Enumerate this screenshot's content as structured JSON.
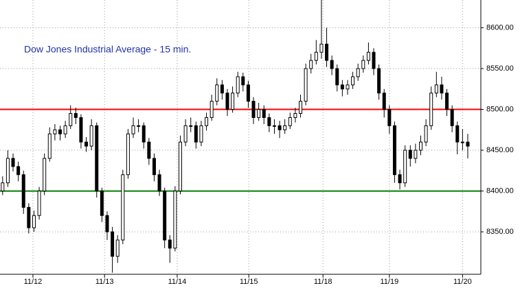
{
  "chart_data": {
    "type": "candlestick",
    "title": "Dow Jones Industrial Average - 15 min.",
    "open": [
      8400,
      8410,
      8440,
      8430,
      8420,
      8380,
      8355,
      8370,
      8400,
      8440,
      8470,
      8475,
      8470,
      8480,
      8495,
      8490,
      8460,
      8455,
      8480,
      8400,
      8370,
      8350,
      8320,
      8340,
      8420,
      8470,
      8480,
      8480,
      8460,
      8440,
      8420,
      8400,
      8340,
      8330,
      8400,
      8460,
      8480,
      8480,
      8460,
      8480,
      8490,
      8510,
      8530,
      8520,
      8500,
      8520,
      8540,
      8530,
      8510,
      8490,
      8500,
      8490,
      8480,
      8480,
      8475,
      8480,
      8490,
      8495,
      8510,
      8550,
      8560,
      8570,
      8580,
      8560,
      8550,
      8530,
      8525,
      8530,
      8540,
      8550,
      8560,
      8570,
      8550,
      8520,
      8500,
      8480,
      8420,
      8410,
      8450,
      8440,
      8450,
      8460,
      8480,
      8520,
      8530,
      8520,
      8500,
      8480,
      8460,
      8460
    ],
    "high": [
      8418,
      8450,
      8446,
      8436,
      8425,
      8385,
      8376,
      8405,
      8446,
      8478,
      8482,
      8480,
      8486,
      8505,
      8502,
      8494,
      8466,
      8488,
      8484,
      8404,
      8375,
      8356,
      8346,
      8426,
      8476,
      8490,
      8488,
      8484,
      8465,
      8446,
      8426,
      8404,
      8346,
      8406,
      8468,
      8488,
      8490,
      8485,
      8486,
      8496,
      8518,
      8538,
      8536,
      8525,
      8528,
      8546,
      8545,
      8535,
      8515,
      8508,
      8505,
      8495,
      8488,
      8486,
      8488,
      8496,
      8502,
      8518,
      8556,
      8568,
      8585,
      8634,
      8600,
      8566,
      8555,
      8536,
      8536,
      8546,
      8556,
      8566,
      8582,
      8575,
      8555,
      8525,
      8505,
      8485,
      8426,
      8456,
      8456,
      8458,
      8468,
      8488,
      8528,
      8546,
      8540,
      8525,
      8505,
      8485,
      8476,
      8470
    ],
    "low": [
      8395,
      8405,
      8424,
      8412,
      8372,
      8348,
      8350,
      8365,
      8395,
      8436,
      8462,
      8462,
      8465,
      8476,
      8482,
      8452,
      8448,
      8450,
      8392,
      8362,
      8340,
      8300,
      8312,
      8335,
      8415,
      8465,
      8472,
      8452,
      8432,
      8412,
      8394,
      8330,
      8312,
      8326,
      8396,
      8455,
      8472,
      8452,
      8455,
      8474,
      8486,
      8505,
      8512,
      8492,
      8496,
      8515,
      8522,
      8502,
      8482,
      8486,
      8482,
      8472,
      8470,
      8465,
      8470,
      8476,
      8484,
      8490,
      8505,
      8544,
      8555,
      8562,
      8552,
      8542,
      8522,
      8516,
      8518,
      8525,
      8535,
      8545,
      8555,
      8542,
      8512,
      8490,
      8470,
      8410,
      8402,
      8405,
      8430,
      8434,
      8444,
      8455,
      8475,
      8515,
      8512,
      8492,
      8472,
      8445,
      8450,
      8440
    ],
    "close": [
      8410,
      8440,
      8430,
      8420,
      8380,
      8355,
      8370,
      8400,
      8440,
      8470,
      8475,
      8470,
      8480,
      8495,
      8490,
      8460,
      8455,
      8480,
      8400,
      8370,
      8350,
      8320,
      8340,
      8420,
      8470,
      8480,
      8480,
      8460,
      8440,
      8420,
      8400,
      8340,
      8330,
      8400,
      8460,
      8480,
      8480,
      8460,
      8480,
      8490,
      8510,
      8530,
      8520,
      8500,
      8520,
      8540,
      8530,
      8510,
      8490,
      8500,
      8490,
      8480,
      8480,
      8475,
      8480,
      8490,
      8495,
      8510,
      8550,
      8560,
      8570,
      8580,
      8560,
      8550,
      8530,
      8525,
      8530,
      8540,
      8550,
      8560,
      8570,
      8550,
      8520,
      8500,
      8480,
      8420,
      8410,
      8450,
      8440,
      8450,
      8460,
      8480,
      8520,
      8530,
      8520,
      8500,
      8480,
      8460,
      8460,
      8455
    ],
    "xlim": [
      -0.5,
      91.5
    ],
    "xticks": [
      {
        "value": 5.8,
        "label": "11/12"
      },
      {
        "value": 19.5,
        "label": "11/13"
      },
      {
        "value": 33.4,
        "label": "11/14"
      },
      {
        "value": 47.1,
        "label": "11/15"
      },
      {
        "value": 61.3,
        "label": "11/18"
      },
      {
        "value": 74,
        "label": "11/19"
      },
      {
        "value": 88,
        "label": "11/20"
      }
    ],
    "ylim": [
      8298,
      8634
    ],
    "yticks": [
      {
        "value": 8350,
        "label": "8350.00"
      },
      {
        "value": 8400,
        "label": "8400.00"
      },
      {
        "value": 8450,
        "label": "8450.00"
      },
      {
        "value": 8500,
        "label": "8500.00"
      },
      {
        "value": 8550,
        "label": "8550.00"
      },
      {
        "value": 8600,
        "label": "8600.00"
      }
    ],
    "grid": true,
    "reference_lines": [
      {
        "value": 8500,
        "color": "#ff0000"
      },
      {
        "value": 8400,
        "color": "#008000"
      }
    ]
  }
}
